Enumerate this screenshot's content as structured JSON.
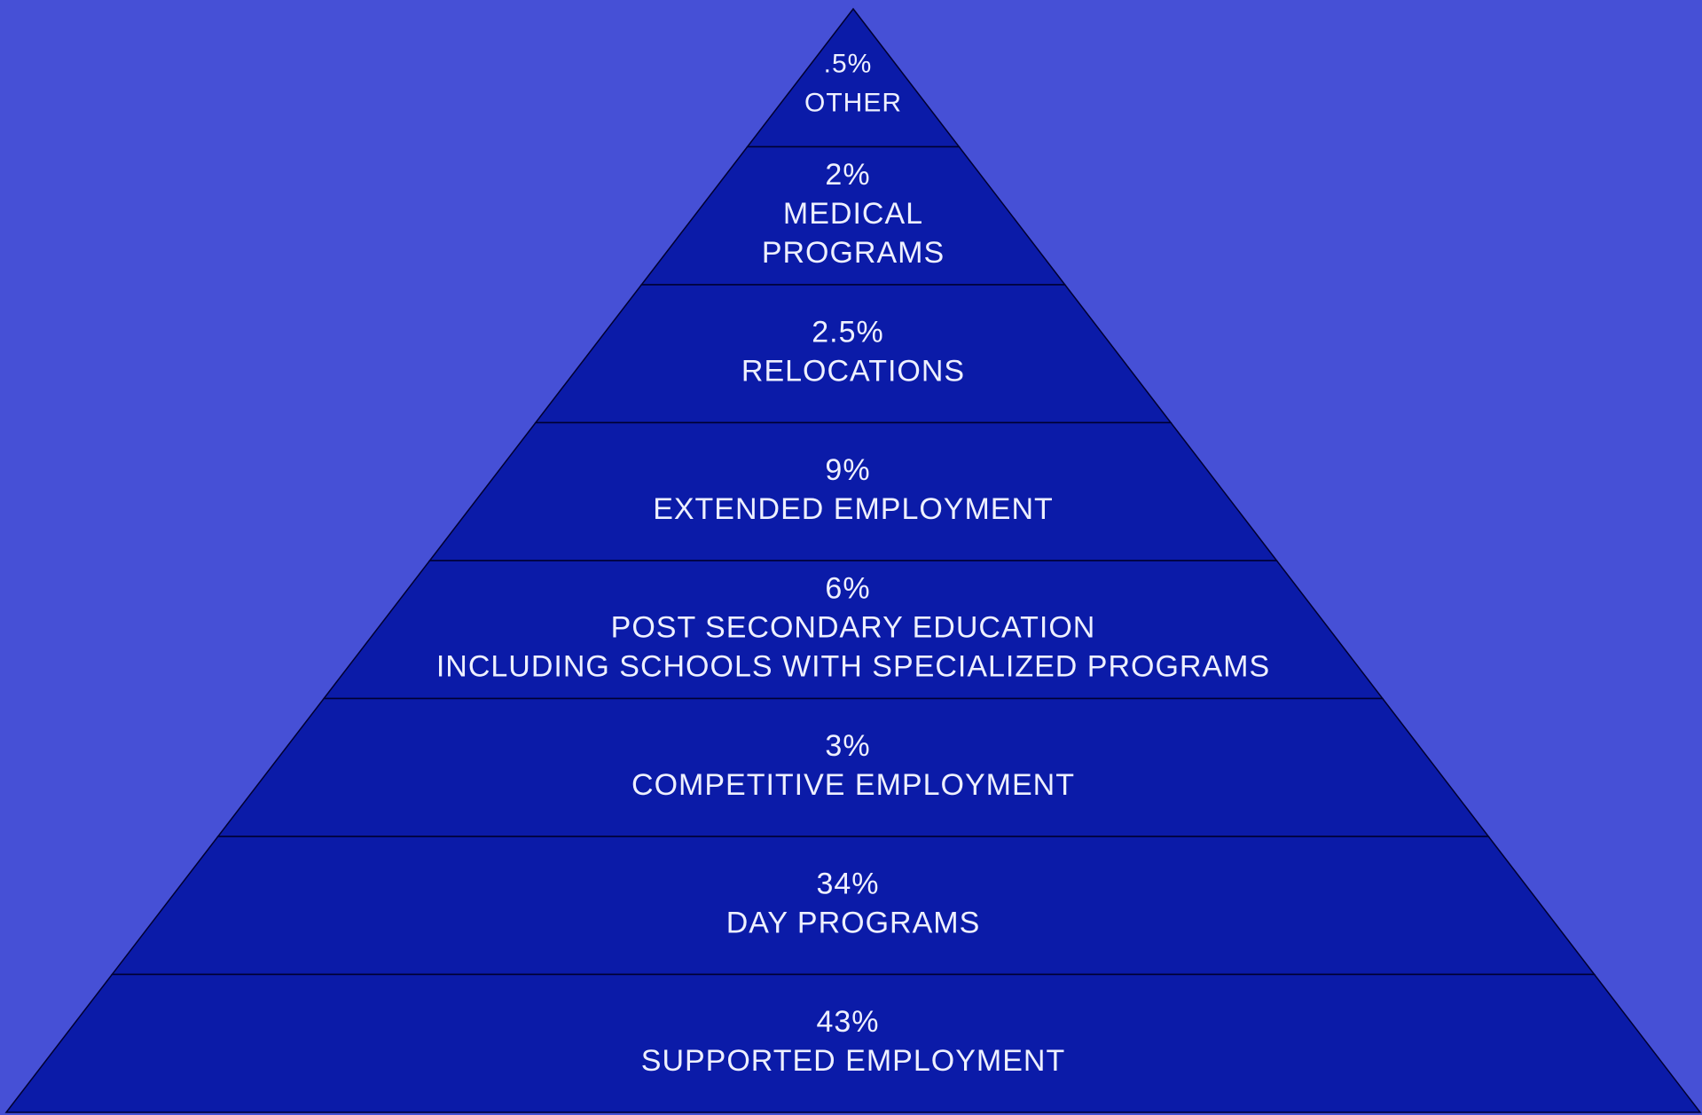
{
  "pyramid": {
    "levels": [
      {
        "percent": ".5%",
        "lines": [
          "OTHER"
        ]
      },
      {
        "percent": "2%",
        "lines": [
          "MEDICAL",
          "PROGRAMS"
        ]
      },
      {
        "percent": "2.5%",
        "lines": [
          "RELOCATIONS"
        ]
      },
      {
        "percent": "9%",
        "lines": [
          "EXTENDED EMPLOYMENT"
        ]
      },
      {
        "percent": "6%",
        "lines": [
          "POST SECONDARY EDUCATION",
          "INCLUDING SCHOOLS WITH SPECIALIZED PROGRAMS"
        ]
      },
      {
        "percent": "3%",
        "lines": [
          "COMPETITIVE EMPLOYMENT"
        ]
      },
      {
        "percent": "34%",
        "lines": [
          "DAY PROGRAMS"
        ]
      },
      {
        "percent": "43%",
        "lines": [
          "SUPPORTED EMPLOYMENT"
        ]
      }
    ]
  }
}
